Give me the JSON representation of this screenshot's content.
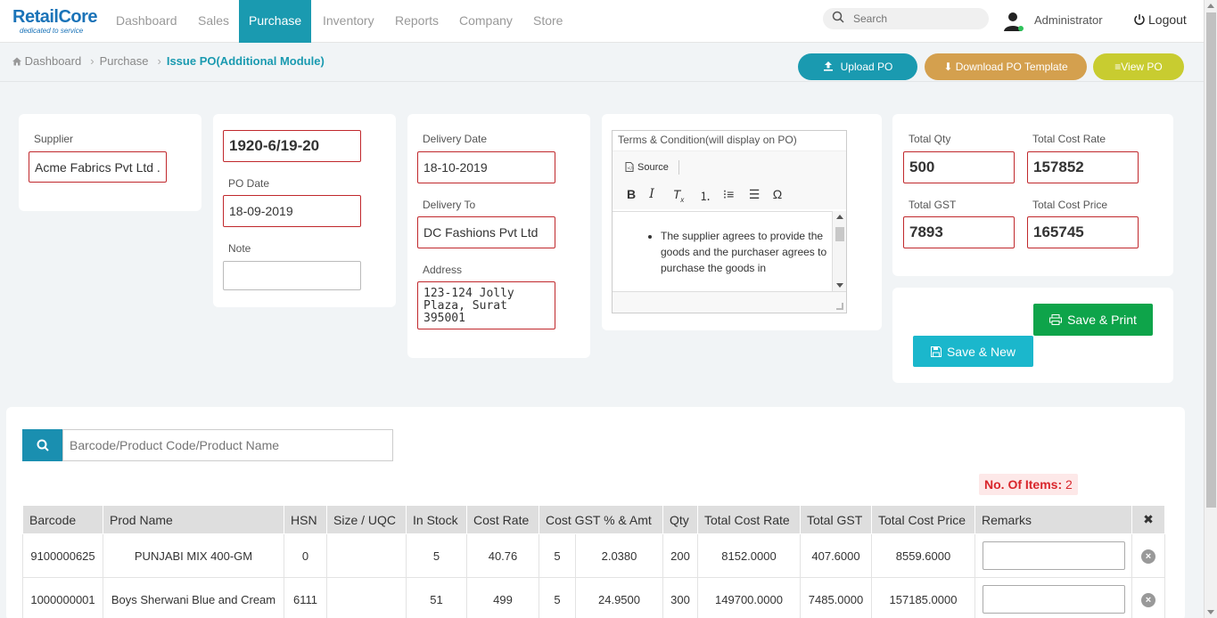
{
  "brand": {
    "name_a": "Retail",
    "name_b": "Core",
    "tagline": "dedicated to service",
    "color": "#1a73b8"
  },
  "nav": {
    "items": [
      {
        "label": "Dashboard"
      },
      {
        "label": "Sales"
      },
      {
        "label": "Purchase"
      },
      {
        "label": "Inventory"
      },
      {
        "label": "Reports"
      },
      {
        "label": "Company"
      },
      {
        "label": "Store"
      }
    ],
    "active": "Purchase",
    "accent": "#1a9ab0"
  },
  "search": {
    "placeholder": "Search"
  },
  "user": {
    "name": "Administrator",
    "logout": "Logout"
  },
  "breadcrumb": {
    "home": "Dashboard",
    "parent": "Purchase",
    "current": "Issue PO(Additional Module)"
  },
  "actions": {
    "upload": "Upload PO",
    "download": "Download PO Template",
    "view": "View PO"
  },
  "form": {
    "supplier_label": "Supplier",
    "supplier_value": "Acme Fabrics Pvt Ltd .",
    "po_number": "1920-6/19-20",
    "po_date_label": "PO Date",
    "po_date": "18-09-2019",
    "note_label": "Note",
    "note_value": "",
    "delivery_date_label": "Delivery Date",
    "delivery_date": "18-10-2019",
    "delivery_to_label": "Delivery To",
    "delivery_to": "DC Fashions Pvt Ltd",
    "address_label": "Address",
    "address": "123-124 Jolly Plaza, Surat 395001"
  },
  "terms": {
    "label": "Terms & Condition(will display on PO)",
    "source_label": "Source",
    "content": "The supplier agrees to provide the goods and the purchaser agrees to purchase the goods in"
  },
  "totals": {
    "qty_label": "Total Qty",
    "qty": "500",
    "cost_rate_label": "Total Cost Rate",
    "cost_rate": "157852",
    "gst_label": "Total GST",
    "gst": "7893",
    "cost_price_label": "Total Cost Price",
    "cost_price": "165745"
  },
  "buttons": {
    "save_print": "Save & Print",
    "save_new": "Save & New"
  },
  "product_search": {
    "placeholder": "Barcode/Product Code/Product Name"
  },
  "items_count": {
    "label": "No. Of Items:",
    "value": "2"
  },
  "table": {
    "headers": [
      "Barcode",
      "Prod Name",
      "HSN",
      "Size / UQC",
      "In Stock",
      "Cost Rate",
      "Cost GST % & Amt",
      "Qty",
      "Total Cost Rate",
      "Total GST",
      "Total Cost Price",
      "Remarks",
      "✖"
    ],
    "rows": [
      {
        "barcode": "9100000625",
        "name": "PUNJABI MIX 400-GM",
        "hsn": "0",
        "size": "",
        "stock": "5",
        "rate": "40.76",
        "gst_pct": "5",
        "gst_amt": "2.0380",
        "qty": "200",
        "total_rate": "8152.0000",
        "total_gst": "407.6000",
        "total_price": "8559.6000"
      },
      {
        "barcode": "1000000001",
        "name": "Boys Sherwani Blue and Cream",
        "hsn": "6111",
        "size": "",
        "stock": "51",
        "rate": "499",
        "gst_pct": "5",
        "gst_amt": "24.9500",
        "qty": "300",
        "total_rate": "149700.0000",
        "total_gst": "7485.0000",
        "total_price": "157185.0000"
      }
    ]
  },
  "colors": {
    "teal": "#1a9ab0",
    "gold": "#d4a04e",
    "lime": "#c8cc30",
    "green": "#0ea44a",
    "cyan": "#1bb7cc",
    "error_border": "#c0282c"
  }
}
